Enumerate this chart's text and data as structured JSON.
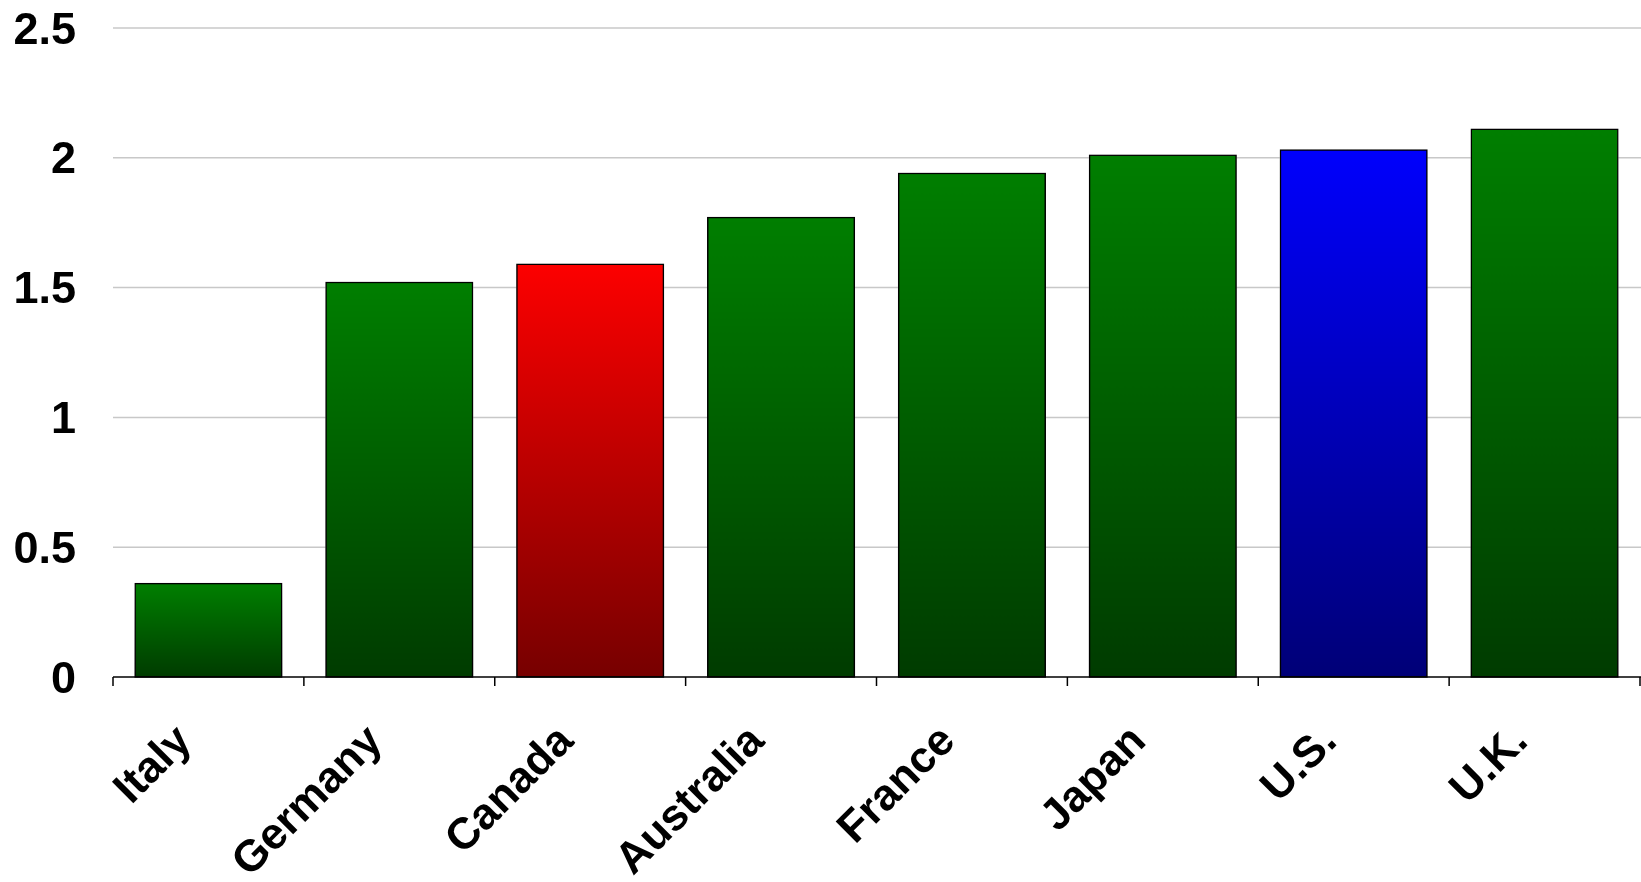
{
  "chart_data": {
    "type": "bar",
    "categories": [
      "Italy",
      "Germany",
      "Canada",
      "Australia",
      "France",
      "Japan",
      "U.S.",
      "U.K."
    ],
    "values": [
      0.36,
      1.52,
      1.59,
      1.77,
      1.94,
      2.01,
      2.03,
      2.11
    ],
    "colors": [
      "#008000",
      "#008000",
      "#ff0000",
      "#008000",
      "#008000",
      "#008000",
      "#0000ff",
      "#008000"
    ],
    "ylim": [
      0,
      2.5
    ],
    "yticks": [
      0,
      0.5,
      1,
      1.5,
      2,
      2.5
    ],
    "grid": "y"
  }
}
